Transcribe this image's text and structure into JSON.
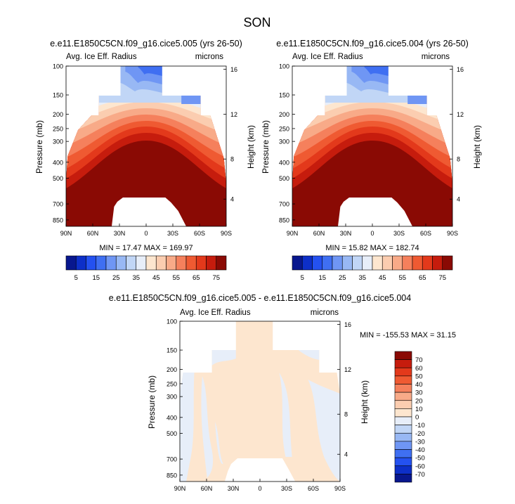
{
  "page": {
    "title": "SON"
  },
  "colors": {
    "blues": [
      "#08178e",
      "#0d2fc8",
      "#2451f0",
      "#3f6ff2",
      "#6f96f4",
      "#98b8f4",
      "#c1d6f6",
      "#e7eef9"
    ],
    "reds": [
      "#fde6cf",
      "#fbcdb0",
      "#f8aa88",
      "#f5805c",
      "#ef5a32",
      "#e3391b",
      "#c61c0d",
      "#8a0a04"
    ]
  },
  "chart_data": [
    {
      "type": "heatmap",
      "title": "e.e11.E1850C5CN.f09_g16.cice5.005 (yrs 26-50)",
      "left_label": "Avg. Ice Eff. Radius",
      "right_label": "microns",
      "ylabel": "Pressure (mb)",
      "ylabel_right": "Height (km)",
      "yticks": [
        "100",
        "150",
        "200",
        "250",
        "300",
        "400",
        "500",
        "700",
        "850"
      ],
      "yticks_right": [
        "16",
        "12",
        "8",
        "4"
      ],
      "xticks": [
        "90N",
        "60N",
        "30N",
        "0",
        "30S",
        "60S",
        "90S"
      ],
      "stats": "MIN = 17.47  MAX = 169.97"
    },
    {
      "type": "heatmap",
      "title": "e.e11.E1850C5CN.f09_g16.cice5.004 (yrs 26-50)",
      "left_label": "Avg. Ice Eff. Radius",
      "right_label": "microns",
      "ylabel": "Pressure (mb)",
      "ylabel_right": "Height (km)",
      "yticks": [
        "100",
        "150",
        "200",
        "250",
        "300",
        "400",
        "500",
        "700",
        "850"
      ],
      "yticks_right": [
        "16",
        "12",
        "8",
        "4"
      ],
      "xticks": [
        "90N",
        "60N",
        "30N",
        "0",
        "30S",
        "60S",
        "90S"
      ],
      "stats": "MIN = 15.82  MAX = 182.74"
    },
    {
      "type": "heatmap",
      "title": "e.e11.E1850C5CN.f09_g16.cice5.005 - e.e11.E1850C5CN.f09_g16.cice5.004",
      "left_label": "Avg. Ice Eff. Radius",
      "right_label": "microns",
      "ylabel": "Pressure (mb)",
      "ylabel_right": "Height (km)",
      "yticks": [
        "100",
        "150",
        "200",
        "250",
        "300",
        "400",
        "500",
        "700",
        "850"
      ],
      "yticks_right": [
        "16",
        "12",
        "8",
        "4"
      ],
      "xticks": [
        "90N",
        "60N",
        "30N",
        "0",
        "30S",
        "60S",
        "90S"
      ],
      "stats": "MIN = -155.53  MAX =  31.15"
    }
  ],
  "colorbar_top": {
    "labels": [
      "5",
      "15",
      "25",
      "35",
      "45",
      "55",
      "65",
      "75"
    ]
  },
  "colorbar_diff": {
    "labels": [
      "70",
      "60",
      "50",
      "40",
      "30",
      "20",
      "10",
      "0",
      "-10",
      "-20",
      "-30",
      "-40",
      "-50",
      "-60",
      "-70"
    ]
  }
}
